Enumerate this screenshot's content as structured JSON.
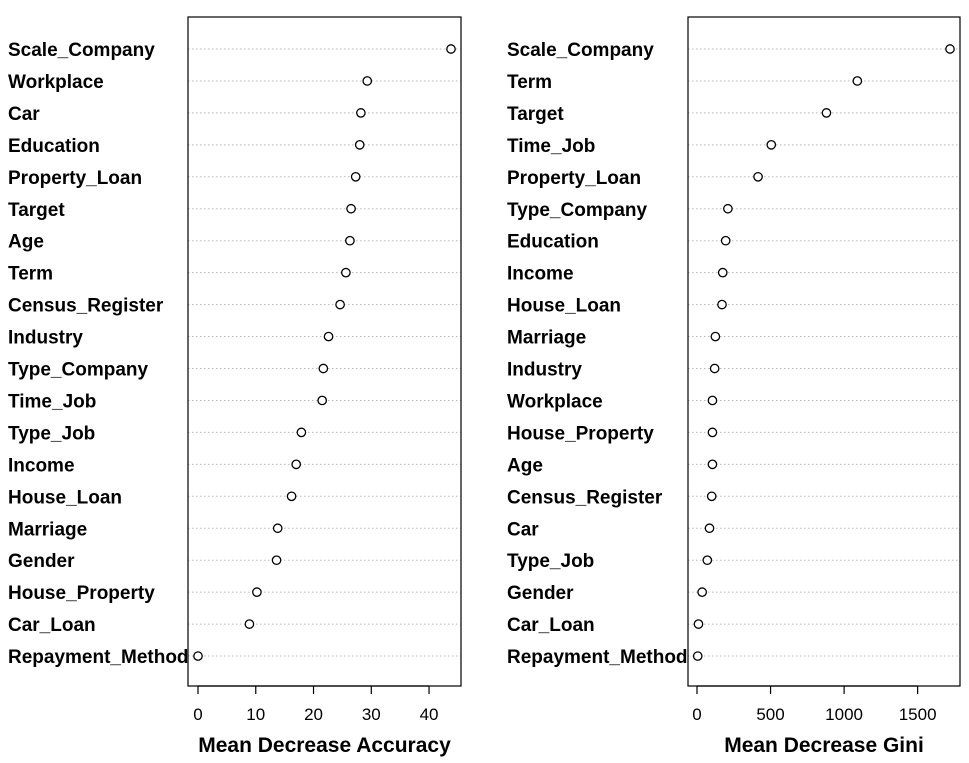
{
  "chart_data": [
    {
      "type": "scatter",
      "subtype": "dotchart",
      "xlabel": "Mean Decrease Accuracy",
      "xlim": [
        0,
        45
      ],
      "xticks": [
        0,
        10,
        20,
        30,
        40
      ],
      "grid": "dotted horizontal guides",
      "categories": [
        "Scale_Company",
        "Workplace",
        "Car",
        "Education",
        "Property_Loan",
        "Target",
        "Age",
        "Term",
        "Census_Register",
        "Industry",
        "Type_Company",
        "Time_Job",
        "Type_Job",
        "Income",
        "House_Loan",
        "Marriage",
        "Gender",
        "House_Property",
        "Car_Loan",
        "Repayment_Method"
      ],
      "values": [
        43.8,
        29.3,
        28.2,
        28.0,
        27.3,
        26.5,
        26.3,
        25.6,
        24.6,
        22.6,
        21.7,
        21.5,
        17.9,
        17.0,
        16.2,
        13.8,
        13.6,
        10.2,
        8.9,
        0.0
      ]
    },
    {
      "type": "scatter",
      "subtype": "dotchart",
      "xlabel": "Mean Decrease Gini",
      "xlim": [
        0,
        1750
      ],
      "xticks": [
        0,
        500,
        1000,
        1500
      ],
      "grid": "dotted horizontal guides",
      "categories": [
        "Scale_Company",
        "Term",
        "Target",
        "Time_Job",
        "Property_Loan",
        "Type_Company",
        "Education",
        "Income",
        "House_Loan",
        "Marriage",
        "Industry",
        "Workplace",
        "House_Property",
        "Age",
        "Census_Register",
        "Car",
        "Type_Job",
        "Gender",
        "Car_Loan",
        "Repayment_Method"
      ],
      "values": [
        1720,
        1090,
        880,
        505,
        415,
        210,
        195,
        175,
        170,
        125,
        120,
        105,
        105,
        105,
        100,
        85,
        70,
        35,
        10,
        5
      ]
    }
  ]
}
